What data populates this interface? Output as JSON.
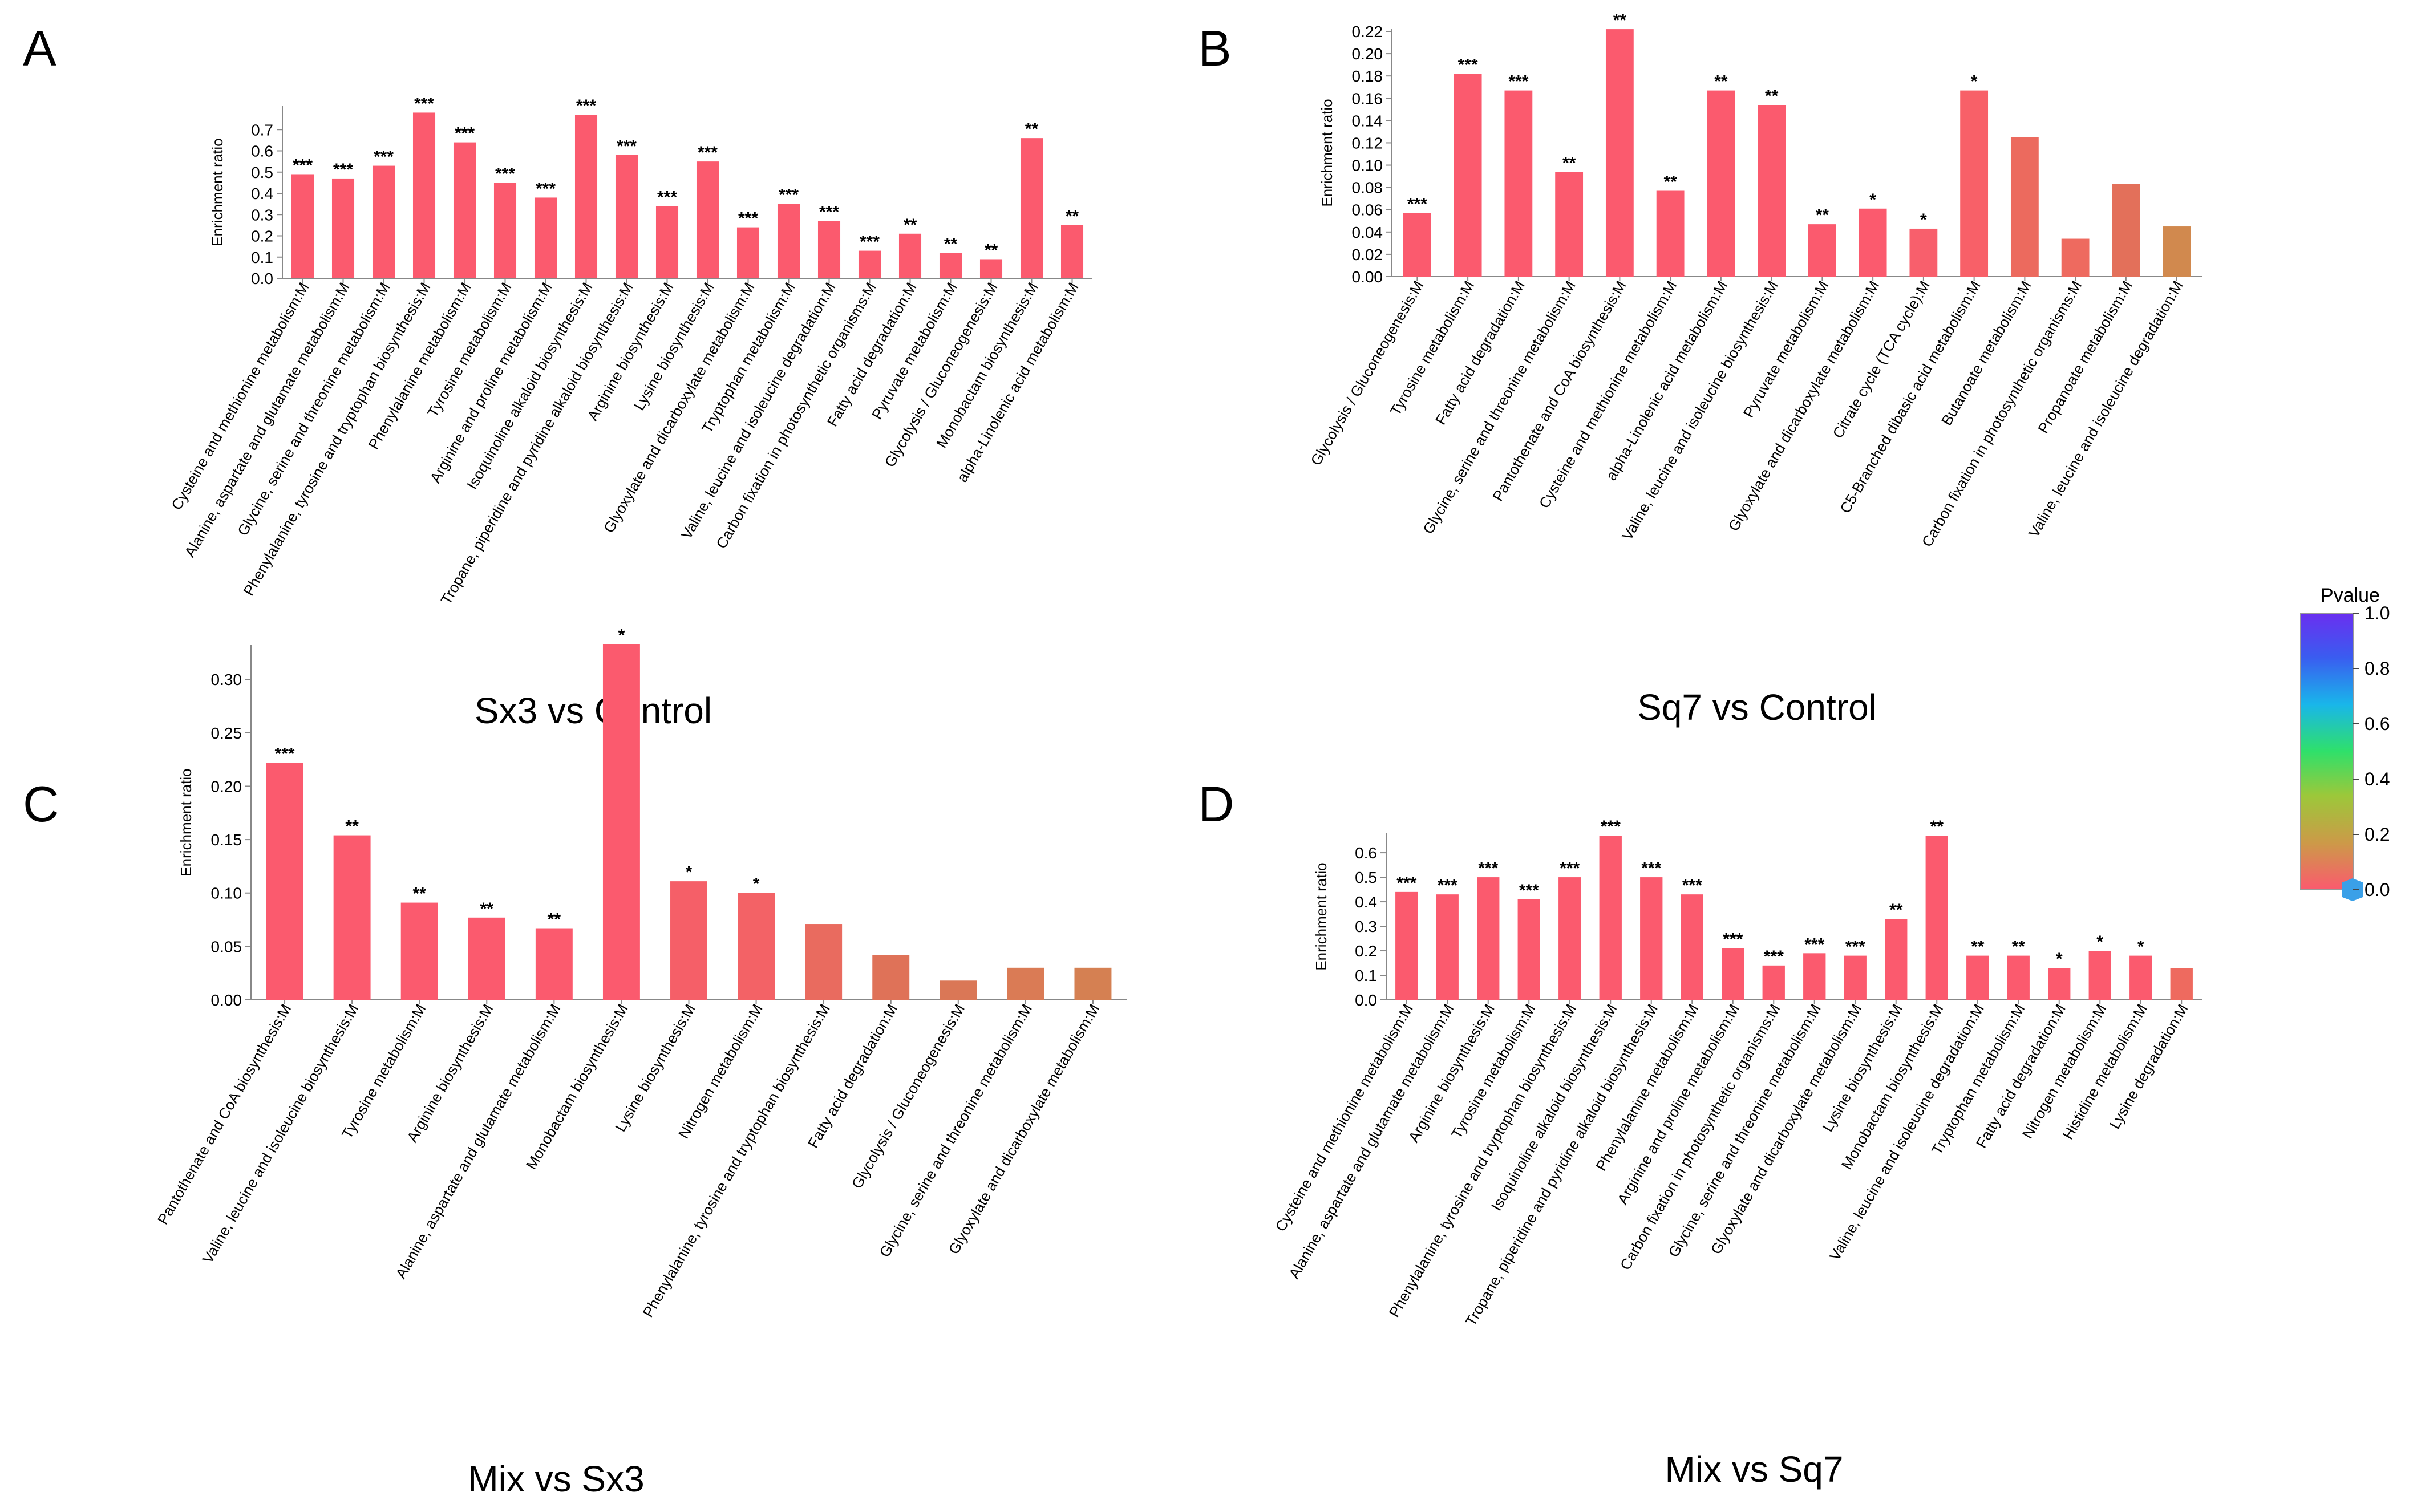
{
  "chart_data": [
    {
      "panel": "A",
      "type": "bar",
      "title": "Sx3  vs  Control",
      "ylabel": "Enrichment ratio",
      "ylim": [
        0,
        0.8
      ],
      "yticks": [
        0.0,
        0.1,
        0.2,
        0.3,
        0.4,
        0.5,
        0.6,
        0.7
      ],
      "categories": [
        "Cysteine and methionine metabolism:M",
        "Alanine, aspartate and glutamate metabolism:M",
        "Glycine, serine and threonine metabolism:M",
        "Phenylalanine, tyrosine and tryptophan biosynthesis:M",
        "Phenylalanine metabolism:M",
        "Tyrosine metabolism:M",
        "Arginine and proline metabolism:M",
        "Isoquinoline alkaloid biosynthesis:M",
        "Tropane, piperidine and pyridine alkaloid biosynthesis:M",
        "Arginine biosynthesis:M",
        "Lysine biosynthesis:M",
        "Glyoxylate and dicarboxylate metabolism:M",
        "Tryptophan metabolism:M",
        "Valine, leucine and isoleucine degradation:M",
        "Carbon fixation in photosynthetic organisms:M",
        "Fatty acid degradation:M",
        "Pyruvate metabolism:M",
        "Glycolysis / Gluconeogenesis:M",
        "Monobactam biosynthesis:M",
        "alpha-Linolenic acid metabolism:M"
      ],
      "values": [
        0.49,
        0.47,
        0.53,
        0.78,
        0.64,
        0.45,
        0.38,
        0.77,
        0.58,
        0.34,
        0.55,
        0.24,
        0.35,
        0.27,
        0.13,
        0.21,
        0.12,
        0.09,
        0.66,
        0.25
      ],
      "significance": [
        "***",
        "***",
        "***",
        "***",
        "***",
        "***",
        "***",
        "***",
        "***",
        "***",
        "***",
        "***",
        "***",
        "***",
        "***",
        "**",
        "**",
        "**",
        "**",
        "**"
      ],
      "colors": [
        "#fb5a6e",
        "#fb5a6e",
        "#fb5a6e",
        "#fb5a6e",
        "#fb5a6e",
        "#fb5a6e",
        "#fb5a6e",
        "#fb5a6e",
        "#fb5a6e",
        "#fb5a6e",
        "#fb5a6e",
        "#fb5a6e",
        "#fb5a6e",
        "#fb5a6e",
        "#fb5a6e",
        "#fb5a6e",
        "#fb5a6e",
        "#fb5a6e",
        "#fb5a6e",
        "#fb5a6e"
      ]
    },
    {
      "panel": "B",
      "type": "bar",
      "title": "Sq7  vs  Control",
      "ylabel": "Enrichment ratio",
      "ylim": [
        0,
        0.22
      ],
      "yticks": [
        0.0,
        0.02,
        0.04,
        0.06,
        0.08,
        0.1,
        0.12,
        0.14,
        0.16,
        0.18,
        0.2,
        0.22
      ],
      "categories": [
        "Glycolysis / Gluconeogenesis:M",
        "Tyrosine metabolism:M",
        "Fatty acid degradation:M",
        "Glycine, serine and threonine metabolism:M",
        "Pantothenate and CoA biosynthesis:M",
        "Cysteine and methionine metabolism:M",
        "alpha-Linolenic acid metabolism:M",
        "Valine, leucine and isoleucine biosynthesis:M",
        "Pyruvate metabolism:M",
        "Glyoxylate and dicarboxylate metabolism:M",
        "Citrate cycle (TCA cycle):M",
        "C5-Branched dibasic acid metabolism:M",
        "Butanoate metabolism:M",
        "Carbon fixation in photosynthetic organisms:M",
        "Propanoate metabolism:M",
        "Valine, leucine and isoleucine degradation:M"
      ],
      "values": [
        0.057,
        0.182,
        0.167,
        0.094,
        0.222,
        0.077,
        0.167,
        0.154,
        0.047,
        0.061,
        0.043,
        0.167,
        0.125,
        0.034,
        0.083,
        0.045
      ],
      "significance": [
        "***",
        "***",
        "***",
        "**",
        "**",
        "**",
        "**",
        "**",
        "**",
        "*",
        "*",
        "*",
        "",
        "",
        "",
        ""
      ],
      "colors": [
        "#fb5a6e",
        "#fb5a6e",
        "#fb5a6e",
        "#fb5a6e",
        "#fb5a6e",
        "#fb5a6e",
        "#fb5a6e",
        "#fb5a6e",
        "#fb5a6e",
        "#fb5a6e",
        "#f85f6c",
        "#f86068",
        "#ec6a5e",
        "#ee6a5f",
        "#e3705a",
        "#d1894e"
      ]
    },
    {
      "panel": "C",
      "type": "bar",
      "title": "Mix  vs  Sx3",
      "ylabel": "Enrichment ratio",
      "ylim": [
        0,
        0.33
      ],
      "yticks": [
        0.0,
        0.05,
        0.1,
        0.15,
        0.2,
        0.25,
        0.3
      ],
      "categories": [
        "Pantothenate and CoA biosynthesis:M",
        "Valine, leucine and isoleucine biosynthesis:M",
        "Tyrosine metabolism:M",
        "Arginine biosynthesis:M",
        "Alanine, aspartate and glutamate metabolism:M",
        "Monobactam biosynthesis:M",
        "Lysine biosynthesis:M",
        "Nitrogen metabolism:M",
        "Phenylalanine, tyrosine and tryptophan biosynthesis:M",
        "Fatty acid degradation:M",
        "Glycolysis / Gluconeogenesis:M",
        "Glycine, serine and threonine metabolism:M",
        "Glyoxylate and dicarboxylate metabolism:M"
      ],
      "values": [
        0.222,
        0.154,
        0.091,
        0.077,
        0.067,
        0.333,
        0.111,
        0.1,
        0.071,
        0.042,
        0.018,
        0.03,
        0.03
      ],
      "significance": [
        "***",
        "**",
        "**",
        "**",
        "**",
        "*",
        "*",
        "*",
        "",
        "",
        "",
        "",
        ""
      ],
      "colors": [
        "#fb5a6e",
        "#fb5a6e",
        "#fb5a6e",
        "#fb5a6e",
        "#fb5a6e",
        "#fb5a6e",
        "#f55f68",
        "#f36266",
        "#e96b5f",
        "#df7258",
        "#da7756",
        "#da7b55",
        "#d58052"
      ]
    },
    {
      "panel": "D",
      "type": "bar",
      "title": "Mix  vs  Sq7",
      "ylabel": "Enrichment ratio",
      "ylim": [
        0,
        0.67
      ],
      "yticks": [
        0.0,
        0.1,
        0.2,
        0.3,
        0.4,
        0.5,
        0.6
      ],
      "categories": [
        "Cysteine and methionine metabolism:M",
        "Alanine, aspartate and glutamate metabolism:M",
        "Arginine biosynthesis:M",
        "Tyrosine metabolism:M",
        "Phenylalanine, tyrosine and tryptophan biosynthesis:M",
        "Isoquinoline alkaloid biosynthesis:M",
        "Tropane, piperidine and pyridine alkaloid biosynthesis:M",
        "Phenylalanine metabolism:M",
        "Arginine and proline metabolism:M",
        "Carbon fixation in photosynthetic organisms:M",
        "Glycine, serine and threonine metabolism:M",
        "Glyoxylate and dicarboxylate metabolism:M",
        "Lysine biosynthesis:M",
        "Monobactam biosynthesis:M",
        "Valine, leucine and isoleucine degradation:M",
        "Tryptophan metabolism:M",
        "Fatty acid degradation:M",
        "Nitrogen metabolism:M",
        "Histidine metabolism:M",
        "Lysine degradation:M"
      ],
      "values": [
        0.44,
        0.43,
        0.5,
        0.41,
        0.5,
        0.67,
        0.5,
        0.43,
        0.21,
        0.14,
        0.19,
        0.18,
        0.33,
        0.67,
        0.18,
        0.18,
        0.13,
        0.2,
        0.18,
        0.13
      ],
      "significance": [
        "***",
        "***",
        "***",
        "***",
        "***",
        "***",
        "***",
        "***",
        "***",
        "***",
        "***",
        "***",
        "**",
        "**",
        "**",
        "**",
        "*",
        "*",
        "*",
        ""
      ],
      "colors": [
        "#fb5a6e",
        "#fb5a6e",
        "#fb5a6e",
        "#fb5a6e",
        "#fb5a6e",
        "#fb5a6e",
        "#fb5a6e",
        "#fb5a6e",
        "#fb5a6e",
        "#fb5a6e",
        "#fb5a6e",
        "#fb5a6e",
        "#fb5a6e",
        "#fb5a6e",
        "#fb5a6e",
        "#fb5a6e",
        "#fb5a6e",
        "#fb5a6e",
        "#fb5a6e",
        "#ee6a5f"
      ]
    }
  ],
  "legend": {
    "title": "Pvalue",
    "ticks": [
      "1.0",
      "0.8",
      "0.6",
      "0.4",
      "0.2",
      "0.0"
    ],
    "gradient_colors": [
      "#6a2ff0",
      "#3a5cf0",
      "#19b6ea",
      "#2fe06a",
      "#9cc83a",
      "#cc9a48",
      "#fb5a6e"
    ],
    "marker_color": "#3aa0e8"
  }
}
